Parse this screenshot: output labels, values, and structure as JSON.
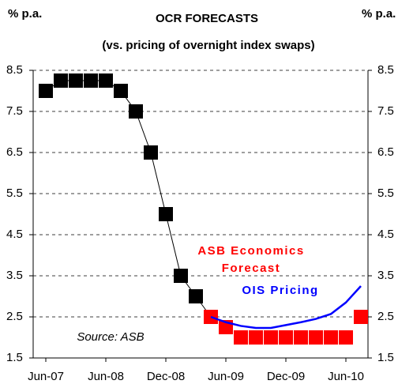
{
  "chart_data": {
    "type": "line",
    "title": "OCR FORECASTS",
    "subtitle": "(vs. pricing of overnight index swaps)",
    "y_label": "% p.a.",
    "y2_label": "% p.a.",
    "source": "Source: ASB",
    "categories": [
      "Jun-07",
      null,
      null,
      null,
      "Jun-08",
      null,
      null,
      null,
      "Dec-08",
      null,
      null,
      null,
      "Jun-09",
      null,
      null,
      null,
      "Dec-09",
      null,
      null,
      null,
      "Jun-10",
      null
    ],
    "series": [
      {
        "color": "#000000",
        "line": true,
        "marker": "square",
        "values": [
          8.0,
          8.25,
          8.25,
          8.25,
          8.25,
          8.0,
          7.5,
          6.5,
          5.0,
          3.5,
          3.0,
          2.5,
          null,
          null,
          null,
          null,
          null,
          null,
          null,
          null,
          null,
          null
        ]
      },
      {
        "name": "ASB Economics Forecast",
        "color": "#ff0000",
        "line": false,
        "marker": "square",
        "values": [
          null,
          null,
          null,
          null,
          null,
          null,
          null,
          null,
          null,
          null,
          null,
          2.5,
          2.25,
          2.0,
          2.0,
          2.0,
          2.0,
          2.0,
          2.0,
          2.0,
          2.0,
          2.5
        ]
      },
      {
        "name": "OIS Pricing",
        "color": "#0000ff",
        "line": true,
        "marker": null,
        "values": [
          null,
          null,
          null,
          null,
          null,
          null,
          null,
          null,
          null,
          null,
          null,
          2.5,
          2.37,
          2.28,
          2.23,
          2.23,
          2.3,
          2.37,
          2.45,
          2.57,
          2.85,
          3.25
        ]
      }
    ],
    "ylim": [
      1.5,
      8.5
    ],
    "yticks": [
      1.5,
      2.5,
      3.5,
      4.5,
      5.5,
      6.5,
      7.5,
      8.5
    ],
    "y2lim": [
      1.5,
      8.5
    ],
    "y2ticks": [
      1.5,
      2.5,
      3.5,
      4.5,
      5.5,
      6.5,
      7.5,
      8.5
    ],
    "grid": true
  }
}
